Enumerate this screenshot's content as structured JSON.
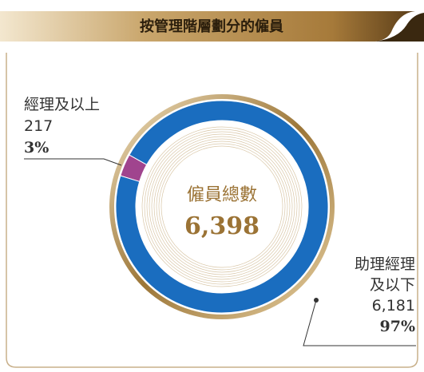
{
  "chart_data": {
    "type": "donut",
    "title": "按管理階層劃分的僱員",
    "center_label": "僱員總數",
    "total_label": "6,398",
    "categories": [
      "經理及以上",
      "助理經理及以下"
    ],
    "values": [
      217,
      6181
    ],
    "value_labels": [
      "217",
      "6,181"
    ],
    "percent_labels": [
      "3%",
      "97%"
    ],
    "colors": [
      "#a0448e",
      "#1a6dbf"
    ]
  }
}
